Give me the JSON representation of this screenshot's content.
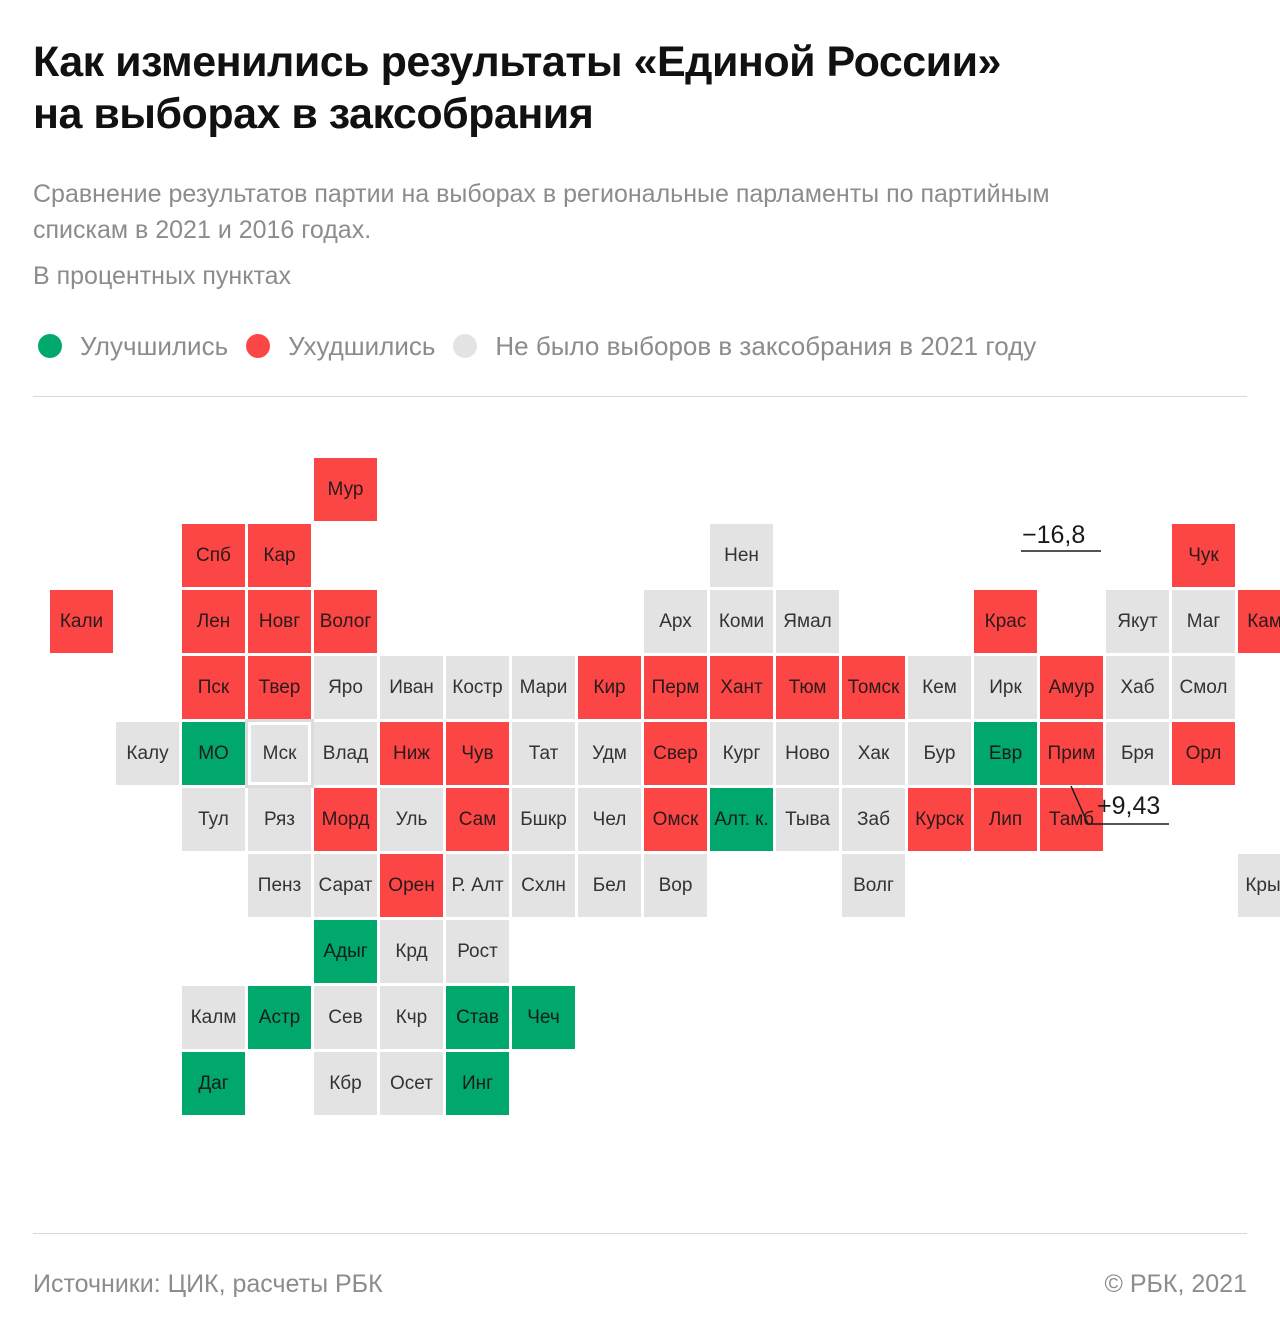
{
  "title": {
    "line1": "Как изменились результаты «Единой России»",
    "line2": "на выборах в заксобрания"
  },
  "subtitle": {
    "line1": "Сравнение результатов партии на выборах в региональные парламенты по партийным",
    "line2": "спискам в 2021 и 2016 годах."
  },
  "units": "В процентных пунктах",
  "colors": {
    "improved": "#00a86b",
    "worsened": "#fc4646",
    "no_election": "#e3e3e3"
  },
  "legend": [
    {
      "label": "Улучшились",
      "color": "#00a86b"
    },
    {
      "label": "Ухудшились",
      "color": "#fc4646"
    },
    {
      "label": "Не было выборов в заксобрания в 2021 году",
      "color": "#e3e3e3"
    }
  ],
  "regions": [
    {
      "label": "Мур",
      "status": "worsened"
    },
    {
      "label": "Спб",
      "status": "worsened"
    },
    {
      "label": "Кар",
      "status": "worsened"
    },
    {
      "label": "Нен",
      "status": "none"
    },
    {
      "label": "Чук",
      "status": "worsened"
    },
    {
      "label": "Кали",
      "status": "worsened"
    },
    {
      "label": "Лен",
      "status": "worsened"
    },
    {
      "label": "Новг",
      "status": "worsened"
    },
    {
      "label": "Волог",
      "status": "worsened"
    },
    {
      "label": "Арх",
      "status": "none"
    },
    {
      "label": "Коми",
      "status": "none"
    },
    {
      "label": "Ямал",
      "status": "none"
    },
    {
      "label": "Крас",
      "status": "worsened"
    },
    {
      "label": "Якут",
      "status": "none"
    },
    {
      "label": "Маг",
      "status": "none"
    },
    {
      "label": "Камч",
      "status": "worsened"
    },
    {
      "label": "Пск",
      "status": "worsened"
    },
    {
      "label": "Твер",
      "status": "worsened"
    },
    {
      "label": "Яро",
      "status": "none"
    },
    {
      "label": "Иван",
      "status": "none"
    },
    {
      "label": "Костр",
      "status": "none"
    },
    {
      "label": "Мари",
      "status": "none"
    },
    {
      "label": "Кир",
      "status": "worsened"
    },
    {
      "label": "Перм",
      "status": "worsened"
    },
    {
      "label": "Хант",
      "status": "worsened"
    },
    {
      "label": "Тюм",
      "status": "worsened"
    },
    {
      "label": "Томск",
      "status": "worsened"
    },
    {
      "label": "Кем",
      "status": "none"
    },
    {
      "label": "Ирк",
      "status": "none"
    },
    {
      "label": "Амур",
      "status": "worsened"
    },
    {
      "label": "Хаб",
      "status": "none"
    },
    {
      "label": "Смол",
      "status": "none"
    },
    {
      "label": "Калу",
      "status": "none"
    },
    {
      "label": "МО",
      "status": "improved"
    },
    {
      "label": "Мск",
      "status": "none"
    },
    {
      "label": "Влад",
      "status": "none"
    },
    {
      "label": "Ниж",
      "status": "worsened"
    },
    {
      "label": "Чув",
      "status": "worsened"
    },
    {
      "label": "Тат",
      "status": "none"
    },
    {
      "label": "Удм",
      "status": "none"
    },
    {
      "label": "Свер",
      "status": "worsened"
    },
    {
      "label": "Кург",
      "status": "none"
    },
    {
      "label": "Ново",
      "status": "none"
    },
    {
      "label": "Хак",
      "status": "none"
    },
    {
      "label": "Бур",
      "status": "none"
    },
    {
      "label": "Евр",
      "status": "improved"
    },
    {
      "label": "Прим",
      "status": "worsened"
    },
    {
      "label": "Бря",
      "status": "none"
    },
    {
      "label": "Орл",
      "status": "worsened"
    },
    {
      "label": "Тул",
      "status": "none"
    },
    {
      "label": "Ряз",
      "status": "none"
    },
    {
      "label": "Морд",
      "status": "worsened"
    },
    {
      "label": "Уль",
      "status": "none"
    },
    {
      "label": "Сам",
      "status": "worsened"
    },
    {
      "label": "Бшкр",
      "status": "none"
    },
    {
      "label": "Чел",
      "status": "none"
    },
    {
      "label": "Омск",
      "status": "worsened"
    },
    {
      "label": "Алт. к.",
      "status": "improved"
    },
    {
      "label": "Тыва",
      "status": "none"
    },
    {
      "label": "Заб",
      "status": "none"
    },
    {
      "label": "Курск",
      "status": "worsened"
    },
    {
      "label": "Лип",
      "status": "worsened"
    },
    {
      "label": "Тамб",
      "status": "worsened"
    },
    {
      "label": "Пенз",
      "status": "none"
    },
    {
      "label": "Сарат",
      "status": "none"
    },
    {
      "label": "Орен",
      "status": "worsened"
    },
    {
      "label": "Р. Алт",
      "status": "none"
    },
    {
      "label": "Схлн",
      "status": "none"
    },
    {
      "label": "Бел",
      "status": "none"
    },
    {
      "label": "Вор",
      "status": "none"
    },
    {
      "label": "Волг",
      "status": "none"
    },
    {
      "label": "Крым",
      "status": "none"
    },
    {
      "label": "Адыг",
      "status": "improved"
    },
    {
      "label": "Крд",
      "status": "none"
    },
    {
      "label": "Рост",
      "status": "none"
    },
    {
      "label": "Калм",
      "status": "none"
    },
    {
      "label": "Астр",
      "status": "improved"
    },
    {
      "label": "Сев",
      "status": "none"
    },
    {
      "label": "Кчр",
      "status": "none"
    },
    {
      "label": "Став",
      "status": "improved"
    },
    {
      "label": "Чеч",
      "status": "improved"
    },
    {
      "label": "Даг",
      "status": "improved"
    },
    {
      "label": "Кбр",
      "status": "none"
    },
    {
      "label": "Осет",
      "status": "none"
    },
    {
      "label": "Инг",
      "status": "improved"
    }
  ],
  "callouts": {
    "min": {
      "value": "−16,8",
      "region": "Чук"
    },
    "max": {
      "value": "+9,43",
      "region": "Евр"
    }
  },
  "footer": {
    "source": "Источники: ЦИК, расчеты РБК",
    "copyright": "©  РБК, 2021"
  }
}
